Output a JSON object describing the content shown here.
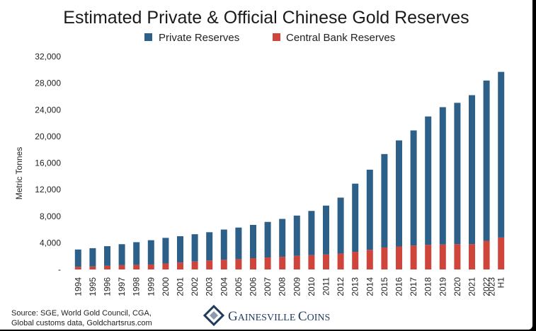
{
  "chart_data": {
    "type": "bar",
    "stacked": true,
    "title": "Estimated Private & Official Chinese Gold Reserves",
    "xlabel": "",
    "ylabel": "Metric Tonnes",
    "ylim": [
      0,
      32000
    ],
    "yticks": [
      0,
      4000,
      8000,
      12000,
      16000,
      20000,
      24000,
      28000,
      32000
    ],
    "ytick_labels": [
      "-",
      "4,000",
      "8,000",
      "12,000",
      "16,000",
      "20,000",
      "24,000",
      "28,000",
      "32,000"
    ],
    "categories": [
      "1994",
      "1995",
      "1996",
      "1997",
      "1998",
      "1999",
      "2000",
      "2001",
      "2002",
      "2003",
      "2004",
      "2005",
      "2006",
      "2007",
      "2008",
      "2009",
      "2010",
      "2011",
      "2012",
      "2013",
      "2014",
      "2015",
      "2016",
      "2017",
      "2018",
      "2019",
      "2020",
      "2021",
      "2022",
      "H1 2023"
    ],
    "legend_position": "top",
    "grid": false,
    "series": [
      {
        "name": "Central Bank Reserves",
        "color": "#d0453b",
        "values": [
          400,
          450,
          550,
          650,
          700,
          750,
          900,
          1050,
          1200,
          1350,
          1450,
          1550,
          1700,
          1800,
          1900,
          2050,
          2150,
          2250,
          2400,
          2650,
          2950,
          3300,
          3450,
          3600,
          3700,
          3750,
          3800,
          3800,
          4300,
          4800
        ]
      },
      {
        "name": "Private Reserves",
        "color": "#2d6088",
        "values": [
          2600,
          2750,
          2950,
          3150,
          3400,
          3650,
          3850,
          3950,
          4100,
          4250,
          4550,
          4750,
          5000,
          5350,
          5700,
          6050,
          6650,
          7350,
          8400,
          10250,
          12050,
          14050,
          15950,
          17300,
          19300,
          20650,
          21250,
          22400,
          24100,
          24900
        ]
      }
    ]
  },
  "source_line1": "Source: SGE, World Gold Council, CGA,",
  "source_line2": "Global customs data, Goldchartsrus.com",
  "brand_name_big1": "G",
  "brand_name_small1": "AINESVILLE ",
  "brand_name_big2": "C",
  "brand_name_small2": "OINS",
  "logo_icon": "gainesville-coins-diamond-logo"
}
